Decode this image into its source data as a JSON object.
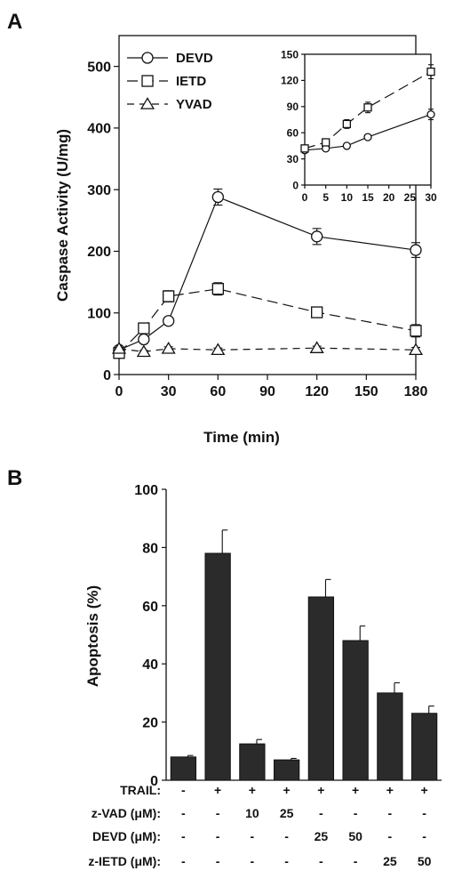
{
  "panelA": {
    "letter": "A",
    "chart_data": {
      "type": "line",
      "xlabel": "Time (min)",
      "ylabel": "Caspase Activity (U/mg)",
      "xlim": [
        0,
        180
      ],
      "ylim": [
        0,
        550
      ],
      "x_ticks": [
        0,
        30,
        60,
        90,
        120,
        150,
        180
      ],
      "y_ticks": [
        0,
        100,
        200,
        300,
        400,
        500
      ],
      "legend_position": "top-left",
      "grid": false,
      "series": [
        {
          "name": "DEVD",
          "marker": "circle",
          "dash": "solid",
          "x": [
            0,
            15,
            30,
            60,
            120,
            180
          ],
          "y": [
            40,
            57,
            87,
            288,
            224,
            202
          ],
          "err": [
            0,
            4,
            3,
            13,
            13,
            12
          ]
        },
        {
          "name": "IETD",
          "marker": "square",
          "dash": "long-dash",
          "x": [
            0,
            15,
            30,
            60,
            120,
            180
          ],
          "y": [
            35,
            75,
            127,
            139,
            101,
            71
          ],
          "err": [
            0,
            3,
            9,
            10,
            4,
            10
          ]
        },
        {
          "name": "YVAD",
          "marker": "triangle",
          "dash": "dash",
          "x": [
            0,
            15,
            30,
            60,
            120,
            180
          ],
          "y": [
            42,
            37,
            42,
            40,
            43,
            40
          ],
          "err": [
            0,
            2,
            3,
            3,
            3,
            4
          ]
        }
      ],
      "inset": {
        "type": "line",
        "xlim": [
          0,
          30
        ],
        "ylim": [
          0,
          150
        ],
        "x_ticks": [
          0,
          5,
          10,
          15,
          20,
          25,
          30
        ],
        "y_ticks": [
          0,
          30,
          60,
          90,
          120,
          150
        ],
        "series": [
          {
            "name": "DEVD",
            "marker": "circle",
            "dash": "solid",
            "x": [
              0,
              5,
              10,
              15,
              30
            ],
            "y": [
              40,
              42,
              45,
              55,
              81
            ],
            "err": [
              3,
              2,
              2,
              2,
              6
            ]
          },
          {
            "name": "IETD",
            "marker": "square",
            "dash": "long-dash",
            "x": [
              0,
              5,
              10,
              15,
              30
            ],
            "y": [
              42,
              49,
              70,
              89,
              130
            ],
            "err": [
              3,
              3,
              5,
              6,
              8
            ]
          }
        ]
      }
    }
  },
  "panelB": {
    "letter": "B",
    "chart_data": {
      "type": "bar",
      "ylabel": "Apoptosis (%)",
      "ylim": [
        0,
        100
      ],
      "y_ticks": [
        0,
        20,
        40,
        60,
        80,
        100
      ],
      "values": [
        8,
        78,
        12.5,
        7,
        63,
        48,
        30,
        23
      ],
      "errors": [
        0.5,
        8,
        1.5,
        0.5,
        6,
        5,
        3.5,
        2.5
      ],
      "bar_color": "#2b2b2b"
    },
    "table": {
      "rows": [
        {
          "label": "TRAIL:",
          "cells": [
            "-",
            "+",
            "+",
            "+",
            "+",
            "+",
            "+",
            "+"
          ]
        },
        {
          "label": "z-VAD (μM):",
          "cells": [
            "-",
            "-",
            "10",
            "25",
            "-",
            "-",
            "-",
            "-"
          ]
        },
        {
          "label": "DEVD (μM):",
          "cells": [
            "-",
            "-",
            "-",
            "-",
            "25",
            "50",
            "-",
            "-"
          ]
        },
        {
          "label": "z-IETD (μM):",
          "cells": [
            "-",
            "-",
            "-",
            "-",
            "-",
            "-",
            "25",
            "50"
          ]
        }
      ]
    }
  }
}
